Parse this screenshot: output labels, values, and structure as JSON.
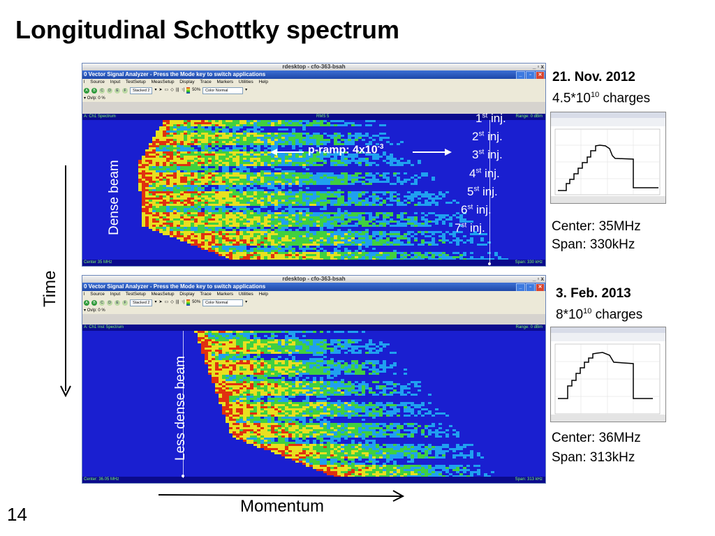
{
  "slide": {
    "title": "Longitudinal Schottky spectrum",
    "page_number": "14"
  },
  "windows": [
    {
      "titlebar": "rdesktop - cfo-363-bsah",
      "app_title": "0 Vector Signal Analyzer - Press the Mode key to switch applications",
      "menu": [
        "l",
        "Source",
        "Input",
        "TestSetup",
        "MeasSetup",
        "Display",
        "Trace",
        "Markers",
        "Utilities",
        "Help"
      ],
      "trace_buttons": [
        "A",
        "B",
        "C",
        "D",
        "E",
        "F"
      ],
      "layout_select": "Stacked 2",
      "percent": "50%",
      "color_select": "Color Normal",
      "overlap": "Ovlp: 0 %",
      "trace_name": "A: Ch1 Spectrum",
      "trace_mid": "RMS 5",
      "range": "Range: 0 dBm",
      "center": "Center 35 MHz",
      "span": "Span: 330 kHz"
    },
    {
      "titlebar": "rdesktop - cfo-363-bsah",
      "app_title": "0 Vector Signal Analyzer - Press the Mode key to switch applications",
      "menu": [
        "l",
        "Source",
        "Input",
        "TestSetup",
        "MeasSetup",
        "Display",
        "Trace",
        "Markers",
        "Utilities",
        "Help"
      ],
      "trace_buttons": [
        "A",
        "B",
        "C",
        "D",
        "E",
        "F"
      ],
      "layout_select": "Stacked 2",
      "percent": "50%",
      "color_select": "Color Normal",
      "overlap": "Ovlp: 0 %",
      "trace_name": "A: Ch1 Inst Spectrum",
      "range": "Range: 0 dBm",
      "center": "Center: 36.05 MHz",
      "span": "Span: 313 kHz"
    }
  ],
  "overlays": {
    "injections": [
      {
        "n": "1",
        "sup": "st",
        "txt": " inj."
      },
      {
        "n": "2",
        "sup": "st",
        "txt": " inj."
      },
      {
        "n": "3",
        "sup": "st",
        "txt": " inj."
      },
      {
        "n": "4",
        "sup": "st",
        "txt": " inj."
      },
      {
        "n": "5",
        "sup": "st",
        "txt": " inj."
      },
      {
        "n": "6",
        "sup": "st",
        "txt": " inj."
      },
      {
        "n": "7",
        "sup": "st",
        "txt": " inj."
      }
    ],
    "dense_beam": "Dense beam",
    "less_dense_beam": "Less dense beam",
    "pramp_base": "p-ramp: 4x10",
    "pramp_exp": "-3"
  },
  "info": [
    {
      "date": "21. Nov. 2012",
      "charges_base": "4.5*10",
      "charges_exp": "10",
      "charges_unit": " charges",
      "center": "Center: 35MHz",
      "span": "Span: 330kHz"
    },
    {
      "date": "3. Feb. 2013",
      "charges_base": "8*10",
      "charges_exp": "10",
      "charges_unit": " charges",
      "center": "Center: 36MHz",
      "span": "Span: 313kHz"
    }
  ],
  "axes": {
    "time": "Time",
    "momentum": "Momentum"
  },
  "colors": {
    "spectrum_bg": "#1a1fd0",
    "hot": "#e03010",
    "warm": "#e8e020",
    "mid": "#40d040",
    "cool": "#20a0f0"
  }
}
